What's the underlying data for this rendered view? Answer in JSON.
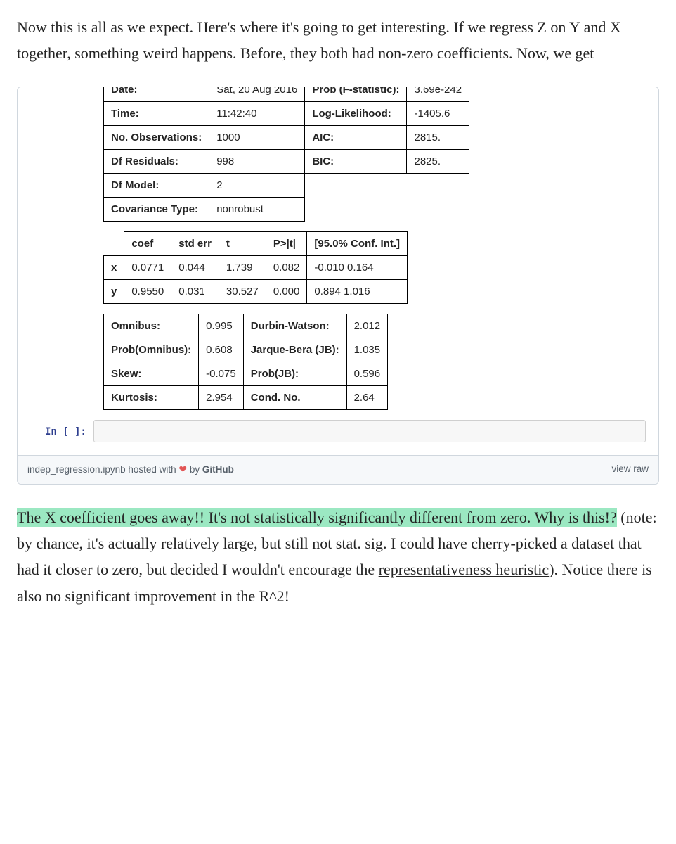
{
  "intro_text": "Now this is all as we expect. Here's where it's going to get interesting. If we regress Z on Y and X together, something weird happens. Before, they both had non-zero coefficients. Now, we get",
  "table1": {
    "rows": [
      [
        "Date:",
        "Sat, 20 Aug 2016",
        "Prob (F-statistic):",
        "3.69e-242"
      ],
      [
        "Time:",
        "11:42:40",
        "Log-Likelihood:",
        "-1405.6"
      ],
      [
        "No. Observations:",
        "1000",
        "AIC:",
        "2815."
      ],
      [
        "Df Residuals:",
        "998",
        "BIC:",
        "2825."
      ],
      [
        "Df Model:",
        "2",
        "",
        ""
      ],
      [
        "Covariance Type:",
        "nonrobust",
        "",
        ""
      ]
    ]
  },
  "table2": {
    "headers": [
      "",
      "coef",
      "std err",
      "t",
      "P>|t|",
      "[95.0% Conf. Int.]"
    ],
    "rows": [
      [
        "x",
        "0.0771",
        "0.044",
        "1.739",
        "0.082",
        "-0.010 0.164"
      ],
      [
        "y",
        "0.9550",
        "0.031",
        "30.527",
        "0.000",
        "0.894 1.016"
      ]
    ]
  },
  "table3": {
    "rows": [
      [
        "Omnibus:",
        "0.995",
        "Durbin-Watson:",
        "2.012"
      ],
      [
        "Prob(Omnibus):",
        "0.608",
        "Jarque-Bera (JB):",
        "1.035"
      ],
      [
        "Skew:",
        "-0.075",
        "Prob(JB):",
        "0.596"
      ],
      [
        "Kurtosis:",
        "2.954",
        "Cond. No.",
        "2.64"
      ]
    ]
  },
  "prompt_label": "In [ ]:",
  "footer": {
    "filename": "indep_regression.ipynb",
    "hosted_with": " hosted with ",
    "heart": "❤",
    "by": " by ",
    "host": "GitHub",
    "view_raw": "view raw"
  },
  "p2": {
    "hl": "The X coefficient goes away!! It's not statistically significantly different from zero. Why is this!?",
    "mid1": " (note: by chance, it's actually relatively large, but still not stat. sig. I could have cherry-picked a dataset that had it closer to zero, but decided I wouldn't encourage the ",
    "link": "representativeness heuristic",
    "mid2": "). Notice there is also no significant improvement in the R^2!"
  }
}
